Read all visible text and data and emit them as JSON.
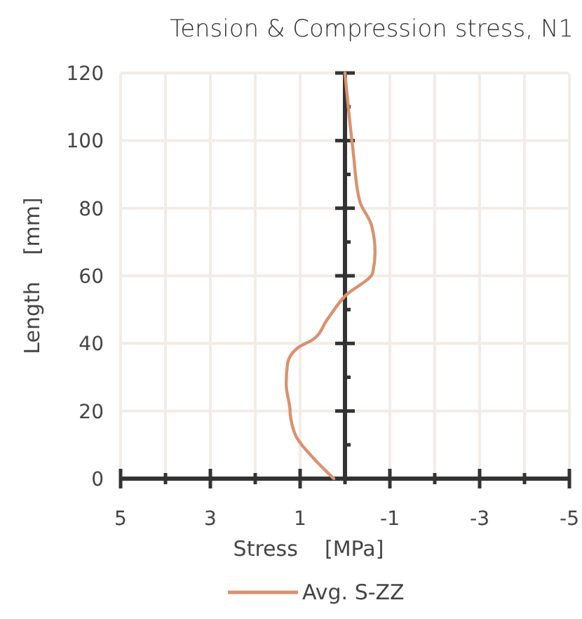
{
  "chart_data": {
    "type": "line",
    "title": "Tension & Compression stress, N1",
    "xlabel": "Stress    [MPa]",
    "ylabel": "Length    [mm]",
    "xlim": [
      5,
      -5
    ],
    "xticks": [
      5,
      {
        "value": 4,
        "label": null
      },
      3,
      {
        "value": 2,
        "label": null
      },
      1,
      {
        "value": 0,
        "label": null
      },
      -1,
      {
        "value": -2,
        "label": null
      },
      -3,
      {
        "value": -4,
        "label": null
      },
      -5
    ],
    "ylim": [
      0,
      120
    ],
    "yticks": [
      0,
      {
        "value": 10,
        "label": null
      },
      20,
      {
        "value": 30,
        "label": null
      },
      40,
      {
        "value": 50,
        "label": null
      },
      60,
      {
        "value": 70,
        "label": null
      },
      80,
      {
        "value": 90,
        "label": null
      },
      100,
      {
        "value": 110,
        "label": null
      },
      120
    ],
    "grid": true,
    "legend": "bottom",
    "marker": "none",
    "line_style": "solid",
    "series": [
      {
        "name": "Avg. S-ZZ",
        "color": "#d9926e",
        "x": [
          0.25,
          0.7,
          1.07,
          1.21,
          1.23,
          1.31,
          1.28,
          1.02,
          0.73,
          0.4,
          0,
          -0.62,
          -0.67,
          -0.59,
          -0.33,
          -0.18,
          0
        ],
        "values": [
          0,
          6,
          12,
          18,
          21,
          28,
          34,
          39,
          41,
          47,
          54,
          61,
          67,
          75,
          82,
          97,
          120
        ]
      }
    ]
  }
}
